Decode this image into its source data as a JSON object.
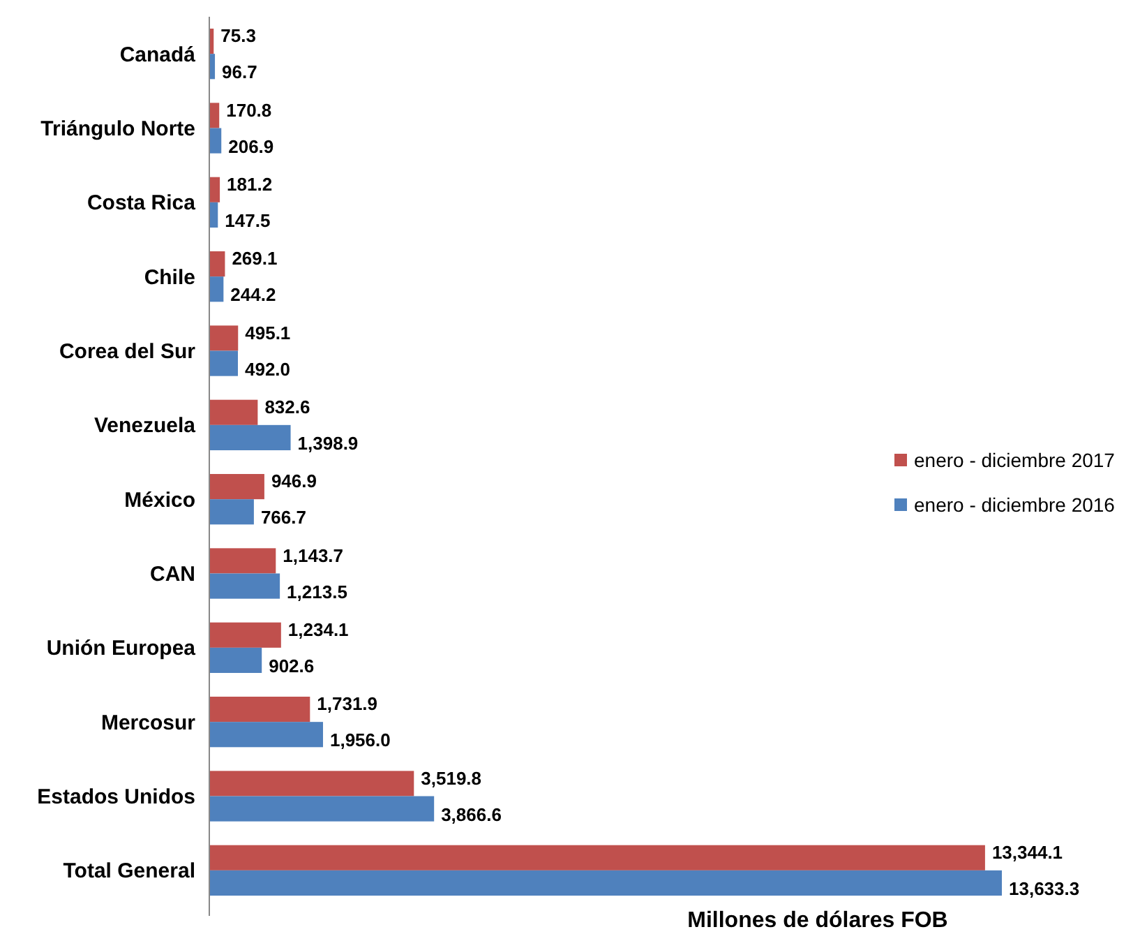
{
  "chart_data": {
    "type": "bar",
    "orientation": "horizontal",
    "xlabel": "Millones de dólares FOB",
    "categories": [
      "Canadá",
      "Triángulo Norte",
      "Costa Rica",
      "Chile",
      "Corea del Sur",
      "Venezuela",
      "México",
      "CAN",
      "Unión Europea",
      "Mercosur",
      "Estados Unidos",
      "Total General"
    ],
    "series": [
      {
        "name": "enero - diciembre 2017",
        "color": "#c0504d",
        "values": [
          75.3,
          170.8,
          181.2,
          269.1,
          495.1,
          832.6,
          946.9,
          1143.7,
          1234.1,
          1731.9,
          3519.8,
          13344.1
        ],
        "value_labels": [
          "75.3",
          "170.8",
          "181.2",
          "269.1",
          "495.1",
          "832.6",
          "946.9",
          "1,143.7",
          "1,234.1",
          "1,731.9",
          "3,519.8",
          "13,344.1"
        ]
      },
      {
        "name": "enero - diciembre 2016",
        "color": "#4f81bd",
        "values": [
          96.7,
          206.9,
          147.5,
          244.2,
          492.0,
          1398.9,
          766.7,
          1213.5,
          902.6,
          1956.0,
          3866.6,
          13633.3
        ],
        "value_labels": [
          "96.7",
          "206.9",
          "147.5",
          "244.2",
          "492.0",
          "1,398.9",
          "766.7",
          "1,213.5",
          "902.6",
          "1,956.0",
          "3,866.6",
          "13,633.3"
        ]
      }
    ],
    "legend": "right"
  }
}
